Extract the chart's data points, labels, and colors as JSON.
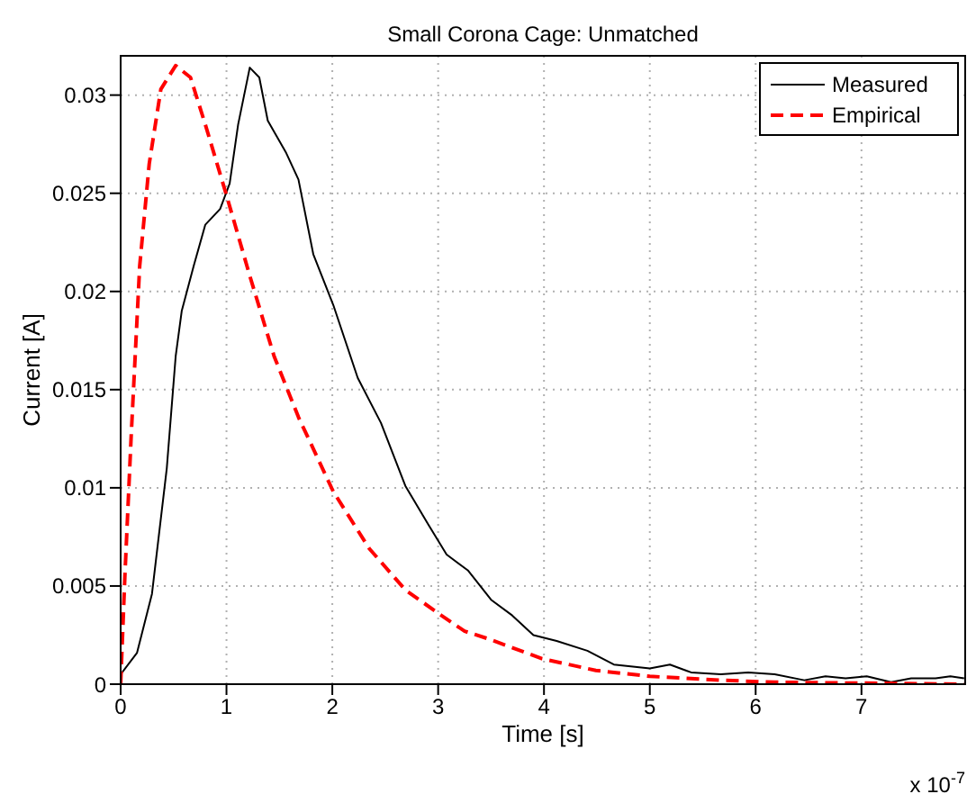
{
  "chart_data": {
    "type": "line",
    "title": "Small Corona Cage: Unmatched",
    "xlabel": "Time [s]",
    "ylabel": "Current [A]",
    "annotations": [
      "x 10$^{-7}$"
    ],
    "xlim": [
      0,
      7.98
    ],
    "xticks": [
      0,
      1,
      2,
      3,
      4,
      5,
      6,
      7
    ],
    "ylim": [
      0,
      0.032
    ],
    "yticks": [
      0,
      0.005,
      0.01,
      0.015,
      0.02,
      0.025,
      0.03
    ],
    "grid": true,
    "legend": "top right",
    "marker": "none",
    "series": [
      {
        "name": "Measured",
        "color": "#000000",
        "line_style": "solid",
        "x": [
          0,
          0.155,
          0.296,
          0.436,
          0.52,
          0.577,
          0.69,
          0.8,
          0.94,
          1.03,
          1.11,
          1.22,
          1.31,
          1.39,
          1.56,
          1.68,
          1.82,
          2.01,
          2.24,
          2.46,
          2.69,
          2.91,
          3.08,
          3.28,
          3.5,
          3.7,
          3.9,
          4.12,
          4.41,
          4.66,
          5.0,
          5.19,
          5.39,
          5.67,
          5.93,
          6.18,
          6.46,
          6.66,
          6.85,
          7.05,
          7.28,
          7.47,
          7.7,
          7.84,
          7.97
        ],
        "values": [
          0.0005,
          0.0016,
          0.0046,
          0.011,
          0.0167,
          0.019,
          0.0213,
          0.0234,
          0.0242,
          0.0255,
          0.0285,
          0.0314,
          0.0309,
          0.0287,
          0.0271,
          0.0257,
          0.0219,
          0.0193,
          0.0156,
          0.0133,
          0.0101,
          0.0081,
          0.0066,
          0.0058,
          0.0043,
          0.0035,
          0.0025,
          0.0022,
          0.0017,
          0.001,
          0.0008,
          0.001,
          0.0006,
          0.0005,
          0.0006,
          0.0005,
          0.0002,
          0.0004,
          0.0003,
          0.0004,
          0.0001,
          0.0003,
          0.0003,
          0.0004,
          0.0003
        ]
      },
      {
        "name": "Empirical",
        "color": "#ff0000",
        "line_style": "dashed",
        "x": [
          0,
          0.04,
          0.1,
          0.18,
          0.27,
          0.38,
          0.52,
          0.66,
          0.8,
          1.0,
          1.22,
          1.45,
          1.68,
          2.01,
          2.35,
          2.69,
          3.03,
          3.25,
          3.48,
          3.98,
          4.49,
          5.0,
          5.67,
          6.18,
          7.97
        ],
        "values": [
          0,
          0.0055,
          0.0127,
          0.0213,
          0.0265,
          0.0303,
          0.0315,
          0.0309,
          0.0285,
          0.0249,
          0.0208,
          0.0167,
          0.0136,
          0.0098,
          0.0069,
          0.0048,
          0.0035,
          0.0027,
          0.0023,
          0.0013,
          0.0007,
          0.0004,
          0.0002,
          0.0001,
          0
        ]
      }
    ]
  }
}
